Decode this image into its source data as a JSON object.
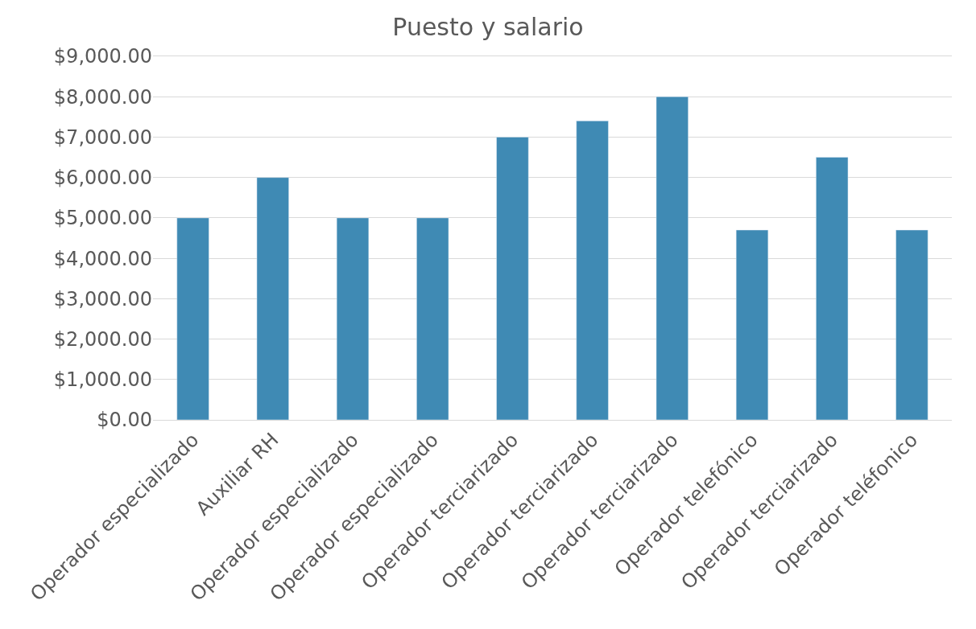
{
  "chart_data": {
    "type": "bar",
    "title": "Puesto y salario",
    "categories": [
      "Operador especializado",
      "Auxiliar RH",
      "Operador especializado",
      "Operador especializado",
      "Operador terciarizado",
      "Operador terciarizado",
      "Operador terciarizado",
      "Operador telefónico",
      "Operador terciarizado",
      "Operador teléfonico"
    ],
    "values": [
      5000,
      6000,
      5000,
      5000,
      7000,
      7400,
      8000,
      4700,
      6500,
      4700
    ],
    "color": "#3f8ab4",
    "ylim": [
      0,
      9000
    ],
    "yticks": [
      {
        "value": 0,
        "label": "$0.00"
      },
      {
        "value": 1000,
        "label": "$1,000.00"
      },
      {
        "value": 2000,
        "label": "$2,000.00"
      },
      {
        "value": 3000,
        "label": "$3,000.00"
      },
      {
        "value": 4000,
        "label": "$4,000.00"
      },
      {
        "value": 5000,
        "label": "$5,000.00"
      },
      {
        "value": 6000,
        "label": "$6,000.00"
      },
      {
        "value": 7000,
        "label": "$7,000.00"
      },
      {
        "value": 8000,
        "label": "$8,000.00"
      },
      {
        "value": 9000,
        "label": "$9,000.00"
      }
    ],
    "grid": "y"
  }
}
